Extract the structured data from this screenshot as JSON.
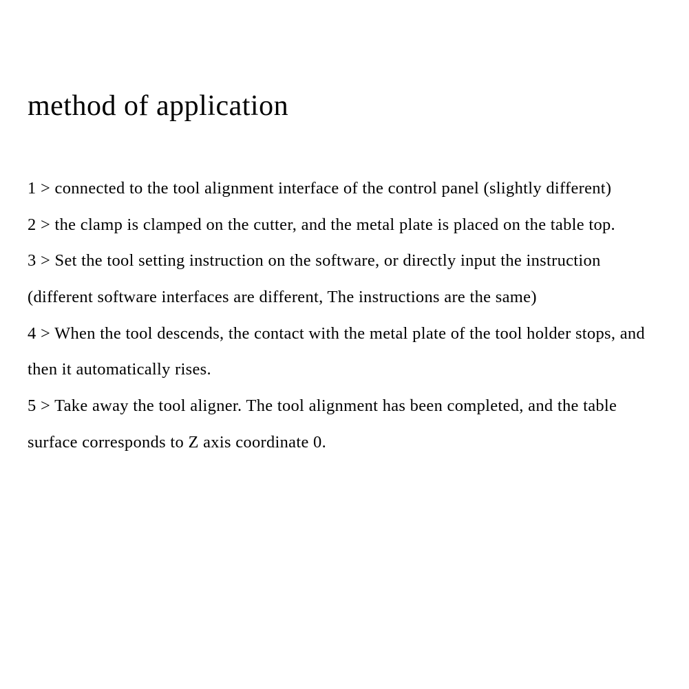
{
  "title": "method of application",
  "steps": [
    "1 > connected to the tool alignment interface of the control panel (slightly different)",
    "2 > the clamp is clamped on the cutter, and the metal plate is placed on the table top.",
    "3 > Set the tool setting instruction on the software, or directly input the instruction (different software interfaces are different, The instructions are the same)",
    "4 > When the tool descends, the contact with the metal plate of the tool holder stops, and then it automatically rises.",
    "5 > Take away the tool aligner. The tool alignment has been completed, and the table surface corresponds to Z axis coordinate 0."
  ],
  "colors": {
    "background": "#ffffff",
    "text": "#000000"
  },
  "typography": {
    "title_fontsize": 42,
    "body_fontsize": 24.5,
    "line_height": 2.15,
    "font_family": "Georgia, Times New Roman, serif"
  }
}
